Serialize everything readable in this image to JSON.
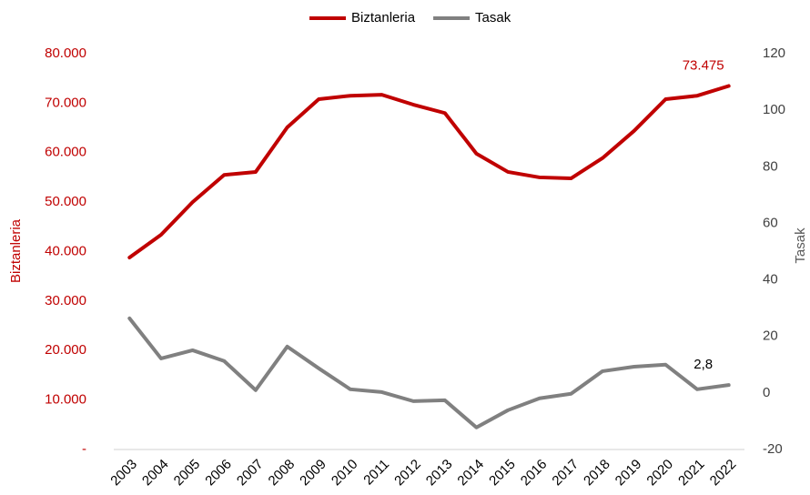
{
  "chart_data": {
    "type": "line",
    "categories": [
      "2003",
      "2004",
      "2005",
      "2006",
      "2007",
      "2008",
      "2009",
      "2010",
      "2011",
      "2012",
      "2013",
      "2014",
      "2015",
      "2016",
      "2017",
      "2018",
      "2019",
      "2020",
      "2021",
      "2022"
    ],
    "series": [
      {
        "name": "Biztanleria",
        "color": "#c00000",
        "values": [
          38800,
          43400,
          50000,
          55500,
          56100,
          65100,
          70800,
          71500,
          71700,
          69700,
          68000,
          59800,
          56100,
          55000,
          54800,
          58900,
          64400,
          70800,
          71500,
          73475
        ],
        "value_labels": [
          null,
          null,
          null,
          null,
          null,
          null,
          null,
          null,
          null,
          null,
          null,
          null,
          null,
          null,
          null,
          null,
          null,
          null,
          null,
          "73.475"
        ]
      },
      {
        "name": "Tasak",
        "color": "#808080",
        "axis": "y2",
        "values": [
          26.4,
          12.2,
          15.1,
          11.3,
          1.0,
          16.4,
          8.7,
          1.3,
          0.3,
          -2.9,
          -2.6,
          -12.2,
          -6.1,
          -1.9,
          -0.3,
          7.7,
          9.3,
          10.0,
          1.3,
          2.8
        ],
        "value_labels": [
          null,
          null,
          null,
          null,
          null,
          null,
          null,
          null,
          null,
          null,
          null,
          null,
          null,
          null,
          null,
          null,
          null,
          null,
          null,
          "2,8"
        ]
      }
    ],
    "ylabel": "Biztanleria",
    "y2label": "Tasak",
    "ylim": [
      0,
      80000
    ],
    "yticks": [
      {
        "value": 0,
        "label": "-"
      },
      {
        "value": 10000,
        "label": "10.000"
      },
      {
        "value": 20000,
        "label": "20.000"
      },
      {
        "value": 30000,
        "label": "30.000"
      },
      {
        "value": 40000,
        "label": "40.000"
      },
      {
        "value": 50000,
        "label": "50.000"
      },
      {
        "value": 60000,
        "label": "60.000"
      },
      {
        "value": 70000,
        "label": "70.000"
      },
      {
        "value": 80000,
        "label": "80.000"
      }
    ],
    "y2lim": [
      -20,
      120
    ],
    "y2ticks": [
      -20,
      0,
      20,
      40,
      60,
      80,
      100,
      120
    ],
    "legend": "top"
  }
}
